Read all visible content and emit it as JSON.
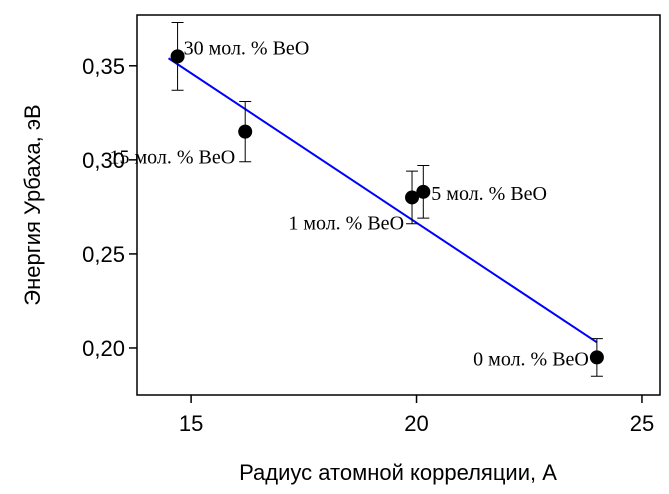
{
  "chart_data": {
    "type": "scatter",
    "x_label": "Радиус атомной корреляции, А",
    "y_label": "Энергия Урбаха, эВ",
    "x": [
      14.7,
      16.2,
      19.9,
      20.15,
      24.0
    ],
    "values": [
      0.355,
      0.315,
      0.28,
      0.283,
      0.195
    ],
    "errors": [
      0.018,
      0.016,
      0.014,
      0.014,
      0.01
    ],
    "color": "#000000",
    "annotations": [
      "30 мол. % BeO",
      "15 мол. % BeO",
      "1 мол. % BeO",
      "5 мол. % BeO",
      "0 мол. % BeO"
    ],
    "fit": {
      "x": [
        14.5,
        24.0
      ],
      "y": [
        0.354,
        0.203
      ],
      "color": "#0000ff"
    },
    "xlim": [
      13.8,
      25.4
    ],
    "ylim": [
      0.175,
      0.377
    ],
    "xticks": [
      15,
      20,
      25
    ],
    "yticks": [
      {
        "value": 0.2,
        "label": "0,20"
      },
      {
        "value": 0.25,
        "label": "0,25"
      },
      {
        "value": 0.3,
        "label": "0,30"
      },
      {
        "value": 0.35,
        "label": "0,35"
      }
    ]
  }
}
